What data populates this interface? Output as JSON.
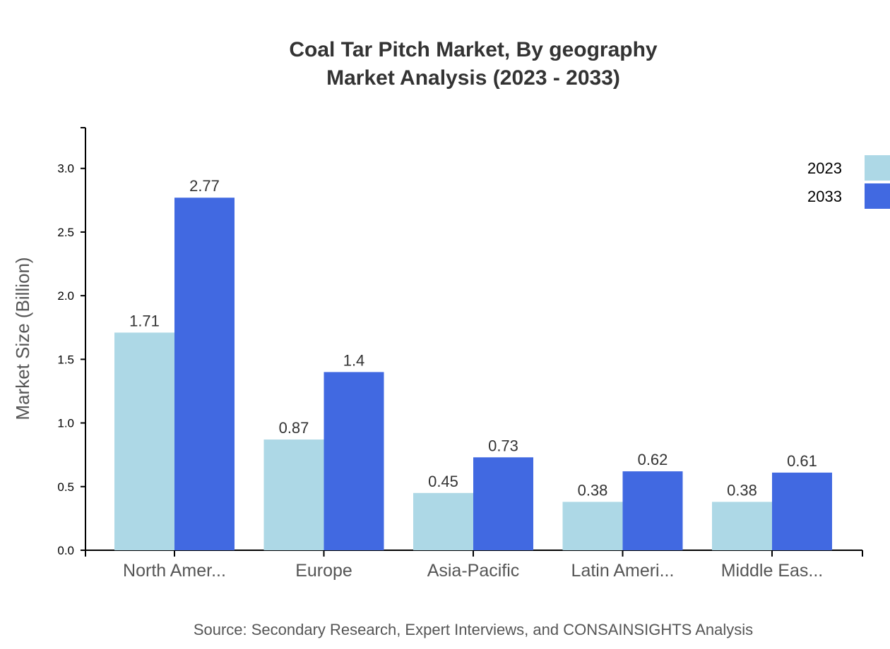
{
  "chart_data": {
    "type": "bar",
    "title": "Coal Tar Pitch Market, By geography",
    "subtitle": "Market Analysis (2023 - 2033)",
    "ylabel": "Market Size (Billion)",
    "xlabel": "",
    "source": "Source: Secondary Research, Expert Interviews, and CONSAINSIGHTS Analysis",
    "categories": [
      "North Amer...",
      "Europe",
      "Asia-Pacific",
      "Latin Ameri...",
      "Middle Eas..."
    ],
    "series": [
      {
        "name": "2023",
        "color": "#ADD8E6",
        "values": [
          1.71,
          0.87,
          0.45,
          0.38,
          0.38
        ],
        "labels": [
          "1.71",
          "0.87",
          "0.45",
          "0.38",
          "0.38"
        ]
      },
      {
        "name": "2033",
        "color": "#4169E1",
        "values": [
          2.77,
          1.4,
          0.73,
          0.62,
          0.61
        ],
        "labels": [
          "2.77",
          "1.4",
          "0.73",
          "0.62",
          "0.61"
        ]
      }
    ],
    "yticks": [
      "0.0",
      "0.5",
      "1.0",
      "1.5",
      "2.0",
      "2.5",
      "3.0"
    ],
    "ylim": [
      0,
      3.32
    ],
    "grid": false,
    "legend": "top-right"
  }
}
